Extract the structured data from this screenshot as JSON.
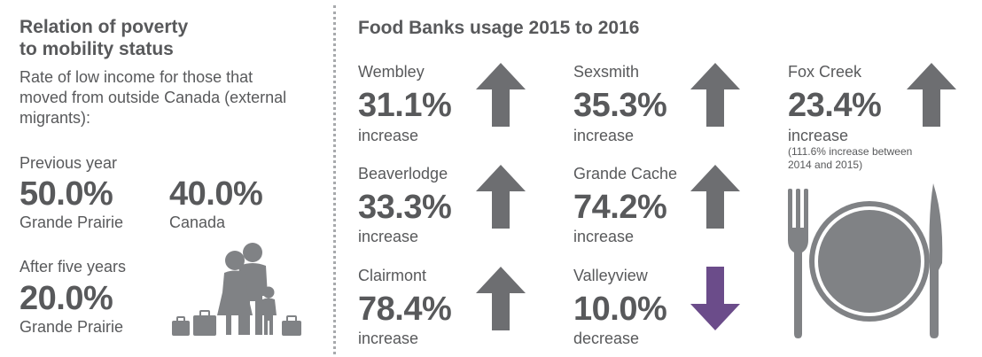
{
  "left": {
    "title_line1": "Relation of poverty",
    "title_line2": "to mobility status",
    "desc_line1": "Rate of low income for those that",
    "desc_line2": "moved from outside Canada (external",
    "desc_line3": "migrants):",
    "previous_year": {
      "label": "Previous year",
      "gp_value": "50.0%",
      "gp_label": "Grande Prairie",
      "ca_value": "40.0%",
      "ca_label": "Canada"
    },
    "five_years": {
      "label": "After five years",
      "gp_value": "20.0%",
      "gp_label": "Grande Prairie"
    },
    "illustration_icon": "family-with-luggage-icon"
  },
  "right": {
    "title": "Food Banks usage 2015 to 2016",
    "items": [
      {
        "name": "Wembley",
        "value": "31.1%",
        "change": "increase",
        "direction": "up"
      },
      {
        "name": "Beaverlodge",
        "value": "33.3%",
        "change": "increase",
        "direction": "up"
      },
      {
        "name": "Clairmont",
        "value": "78.4%",
        "change": "increase",
        "direction": "up"
      },
      {
        "name": "Sexsmith",
        "value": "35.3%",
        "change": "increase",
        "direction": "up"
      },
      {
        "name": "Grande Cache",
        "value": "74.2%",
        "change": "increase",
        "direction": "up"
      },
      {
        "name": "Valleyview",
        "value": "10.0%",
        "change": "decrease",
        "direction": "down"
      },
      {
        "name": "Fox Creek",
        "value": "23.4%",
        "change": "increase",
        "direction": "up",
        "note_line1": "(111.6% increase between",
        "note_line2": "2014 and 2015)"
      }
    ],
    "plate_icon": "plate-fork-knife-icon"
  },
  "colors": {
    "text": "#58595b",
    "arrow_up": "#6d6e71",
    "arrow_down": "#6b4c8a",
    "divider": "#a7a9ac",
    "icon": "#808285"
  }
}
